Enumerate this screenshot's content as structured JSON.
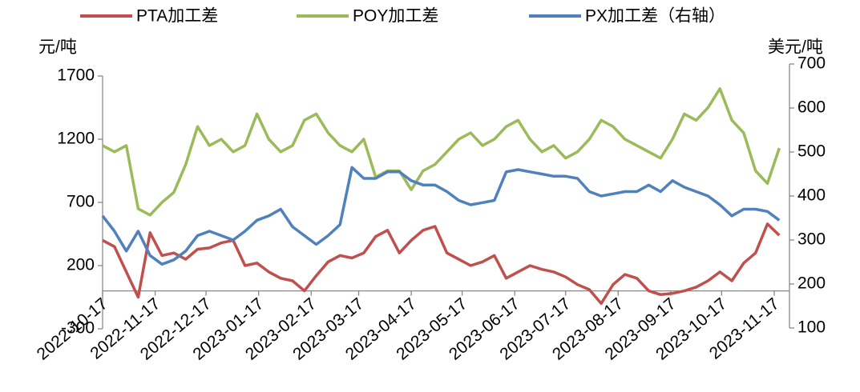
{
  "chart_data": {
    "type": "line",
    "ylabel": "元/吨",
    "y2label": "美元/吨",
    "x": [
      "2022-10-17",
      "2022-10-24",
      "2022-10-31",
      "2022-11-07",
      "2022-11-14",
      "2022-11-21",
      "2022-11-28",
      "2022-12-05",
      "2022-12-12",
      "2022-12-19",
      "2022-12-26",
      "2023-01-02",
      "2023-01-09",
      "2023-01-16",
      "2023-01-23",
      "2023-01-30",
      "2023-02-06",
      "2023-02-13",
      "2023-02-20",
      "2023-02-27",
      "2023-03-06",
      "2023-03-13",
      "2023-03-20",
      "2023-03-27",
      "2023-04-03",
      "2023-04-10",
      "2023-04-17",
      "2023-04-24",
      "2023-05-01",
      "2023-05-08",
      "2023-05-15",
      "2023-05-22",
      "2023-05-29",
      "2023-06-05",
      "2023-06-12",
      "2023-06-19",
      "2023-06-26",
      "2023-07-03",
      "2023-07-10",
      "2023-07-17",
      "2023-07-24",
      "2023-07-31",
      "2023-08-07",
      "2023-08-14",
      "2023-08-21",
      "2023-08-28",
      "2023-09-04",
      "2023-09-11",
      "2023-09-18",
      "2023-09-25",
      "2023-10-02",
      "2023-10-09",
      "2023-10-16",
      "2023-10-23",
      "2023-10-30",
      "2023-11-06",
      "2023-11-13",
      "2023-11-20"
    ],
    "series": [
      {
        "name": "PTA加工差",
        "color": "#c0504d",
        "values": [
          400,
          350,
          150,
          -50,
          460,
          280,
          300,
          250,
          330,
          340,
          380,
          400,
          200,
          220,
          150,
          100,
          80,
          0,
          120,
          230,
          280,
          260,
          300,
          430,
          480,
          300,
          400,
          480,
          510,
          300,
          250,
          200,
          230,
          280,
          100,
          150,
          200,
          170,
          150,
          110,
          50,
          10,
          -100,
          50,
          130,
          100,
          0,
          -30,
          -20,
          0,
          30,
          80,
          150,
          80,
          220,
          300,
          530,
          440
        ]
      },
      {
        "name": "POY加工差",
        "color": "#9bbb59",
        "values": [
          1150,
          1100,
          1150,
          650,
          600,
          700,
          780,
          1000,
          1300,
          1150,
          1200,
          1100,
          1150,
          1400,
          1200,
          1100,
          1150,
          1350,
          1400,
          1250,
          1150,
          1100,
          1200,
          900,
          950,
          950,
          800,
          950,
          1000,
          1100,
          1200,
          1250,
          1150,
          1200,
          1300,
          1350,
          1200,
          1100,
          1150,
          1050,
          1100,
          1200,
          1350,
          1300,
          1200,
          1150,
          1100,
          1050,
          1200,
          1400,
          1350,
          1450,
          1600,
          1350,
          1250,
          950,
          850,
          1130
        ]
      },
      {
        "name": "PX加工差（右轴）",
        "color": "#4f81bd",
        "axis": "y2",
        "values": [
          355,
          320,
          275,
          320,
          265,
          245,
          255,
          275,
          310,
          320,
          310,
          300,
          320,
          345,
          355,
          370,
          330,
          310,
          290,
          310,
          335,
          465,
          440,
          440,
          455,
          455,
          435,
          425,
          425,
          410,
          390,
          380,
          385,
          390,
          455,
          460,
          455,
          450,
          445,
          445,
          440,
          410,
          400,
          405,
          410,
          410,
          425,
          410,
          435,
          420,
          410,
          400,
          380,
          355,
          370,
          370,
          365,
          345
        ]
      }
    ],
    "xlim": [
      "2022-10-17",
      "2023-11-26"
    ],
    "xticks": [
      "2022-10-17",
      "2022-11-17",
      "2022-12-17",
      "2023-01-17",
      "2023-02-17",
      "2023-03-17",
      "2023-04-17",
      "2023-05-17",
      "2023-06-17",
      "2023-07-17",
      "2023-08-17",
      "2023-09-17",
      "2023-10-17",
      "2023-11-17"
    ],
    "ylim": [
      -300,
      1700
    ],
    "yticks": [
      -300,
      200,
      700,
      1200,
      1700
    ],
    "y2lim": [
      100,
      700
    ],
    "y2ticks": [
      100,
      200,
      300,
      400,
      500,
      600,
      700
    ],
    "grid": false,
    "legend": "top"
  }
}
